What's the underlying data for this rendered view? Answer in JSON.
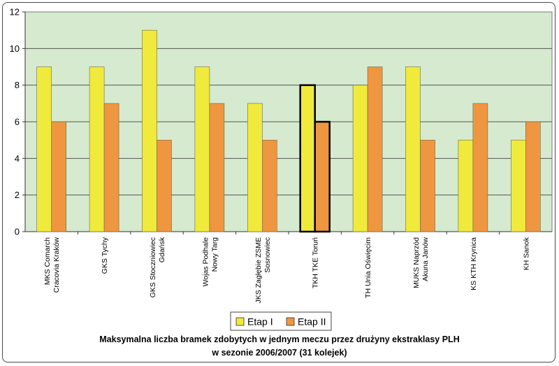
{
  "chart_data": {
    "type": "bar",
    "categories": [
      [
        "MKS Comarch",
        "Cracovia Kraków"
      ],
      [
        "GKS Tychy"
      ],
      [
        "GKS Stoczniowiec",
        "Gdańsk"
      ],
      [
        "Wojas Podhale",
        "Nowy Targ"
      ],
      [
        "JKS Zagłębie ZSME",
        "Sosnowiec"
      ],
      [
        "TKH TKE Toruń"
      ],
      [
        "TH Unia Oświęcim"
      ],
      [
        "MUKS Naprzód",
        "Akuna Janów"
      ],
      [
        "KS KTH Krynica"
      ],
      [
        "KH Sanok"
      ]
    ],
    "series": [
      {
        "name": "Etap I",
        "color": "#f0ea3c",
        "values": [
          9,
          9,
          11,
          9,
          7,
          8,
          8,
          9,
          5,
          5
        ]
      },
      {
        "name": "Etap II",
        "color": "#ee9640",
        "values": [
          6,
          7,
          5,
          7,
          5,
          6,
          9,
          5,
          7,
          6
        ]
      }
    ],
    "highlighted_category_index": 5,
    "ylim": [
      0,
      12
    ],
    "yticks": [
      "0",
      "2",
      "4",
      "6",
      "8",
      "10",
      "12"
    ],
    "grid": true,
    "plot_background": "#d6ead0",
    "legend_position": "bottom"
  },
  "caption": {
    "line1": "Maksymalna liczba bramek zdobytych w jednym meczu przez drużyny ekstraklasy PLH",
    "line2": "w sezonie 2006/2007 (31 kolejek)"
  }
}
